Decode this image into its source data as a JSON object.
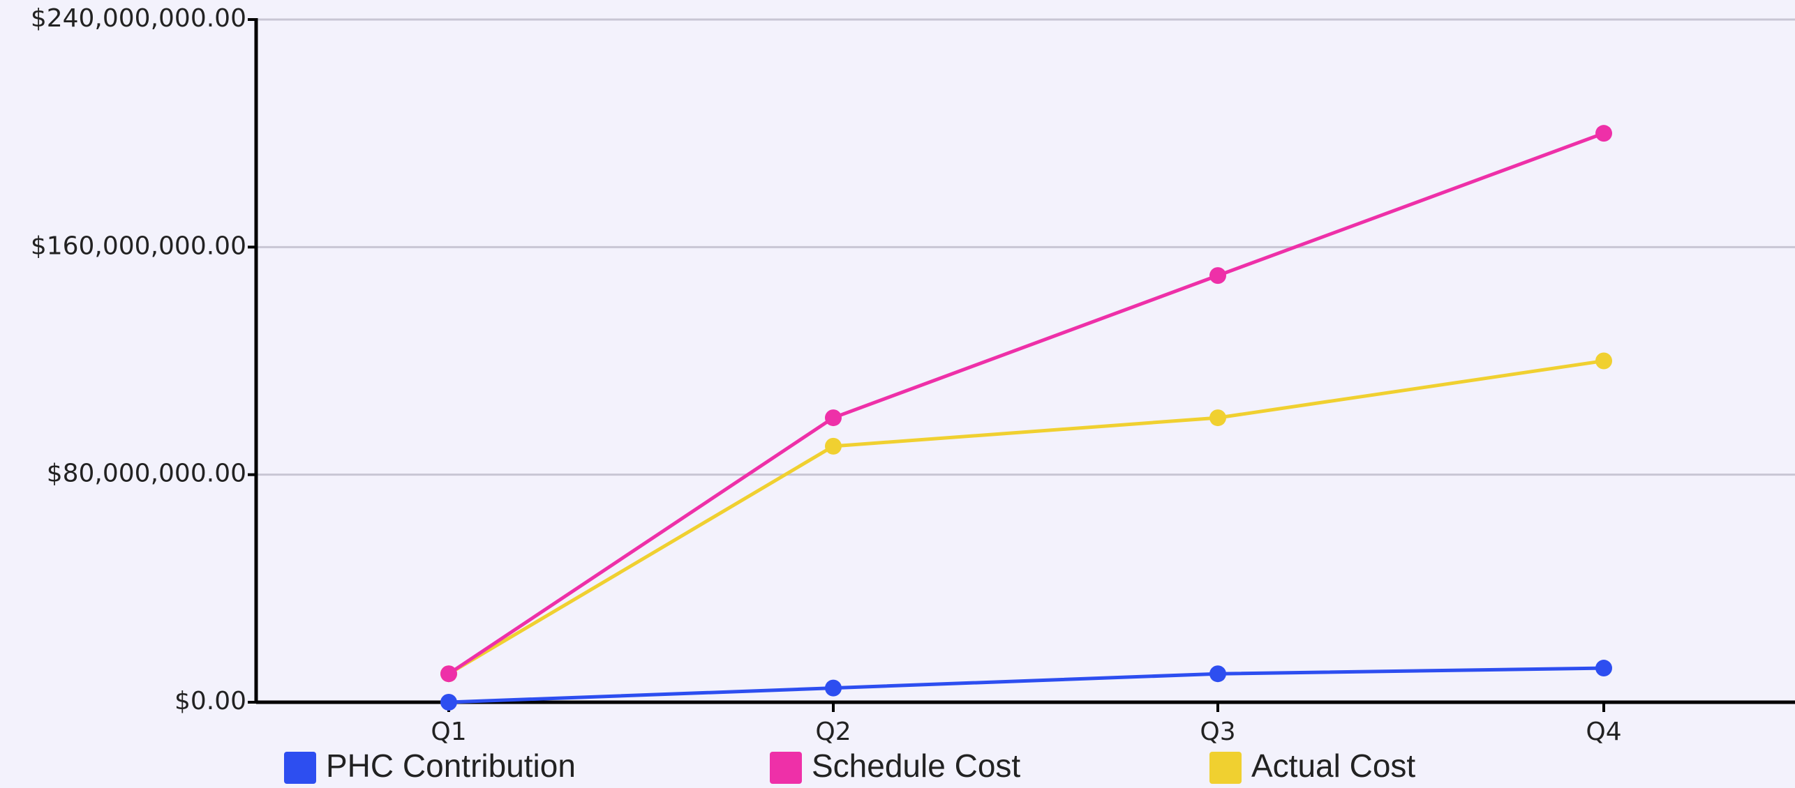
{
  "chart_data": {
    "type": "line",
    "categories": [
      "Q1",
      "Q2",
      "Q3",
      "Q4"
    ],
    "series": [
      {
        "name": "PHC Contribution",
        "color": "#2d4ef0",
        "values": [
          0,
          5000000,
          10000000,
          12000000
        ]
      },
      {
        "name": "Schedule Cost",
        "color": "#ee30a8",
        "values": [
          10000000,
          100000000,
          150000000,
          200000000
        ]
      },
      {
        "name": "Actual Cost",
        "color": "#f0d030",
        "values": [
          10000000,
          90000000,
          100000000,
          120000000
        ]
      }
    ],
    "ylim": [
      0,
      240000000
    ],
    "yticks": [
      {
        "value": 0,
        "label": "$0.00"
      },
      {
        "value": 80000000,
        "label": "$80,000,000.00"
      },
      {
        "value": 160000000,
        "label": "$160,000,000.00"
      },
      {
        "value": 240000000,
        "label": "$240,000,000.00"
      }
    ],
    "grid": true
  }
}
